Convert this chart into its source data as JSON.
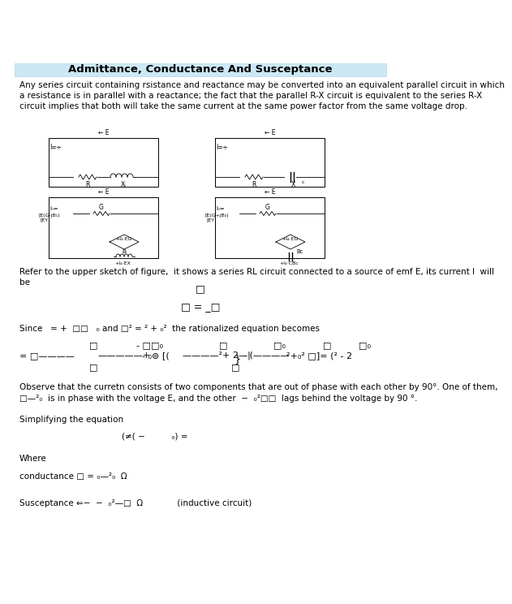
{
  "title": "Admittance, Conductance And Susceptance",
  "title_bg": "#cde8f5",
  "para1": "Any series circuit containing rsistance and reactance may be converted into an equivalent parallel circuit in which\na resistance is in parallel with a reactance; the fact that the parallel R-X circuit is equivalent to the series R-X\ncircuit implies that both will take the same current at the same power factor from the same voltage drop.",
  "para2": "Refer to the upper sketch of figure,  it shows a series RL circuit connected to a source of emf E, its current I  will\nbe",
  "para3": "Since   = +  □□   ₀ and □² = ² + ₀²  the rationalized equation becomes",
  "para4": "Observe that the curretn consists of two components that are out of phase with each other by 90°. One of them,",
  "para4b": "□—²₀  is in phase with the voltage E, and the other  −  ₀²□□  lags behind the voltage by 90 °.",
  "para5": "Simplifying the equation",
  "para6": "Where",
  "para7a": "conductance □ = ₀—²₀  Ω",
  "para7b": "Susceptance ⇐−  −  ₀²—□  Ω             (inductive circuit)",
  "bg_color": "#ffffff",
  "text_color": "#000000",
  "font_size_title": 9.5,
  "font_size_body": 7.5
}
